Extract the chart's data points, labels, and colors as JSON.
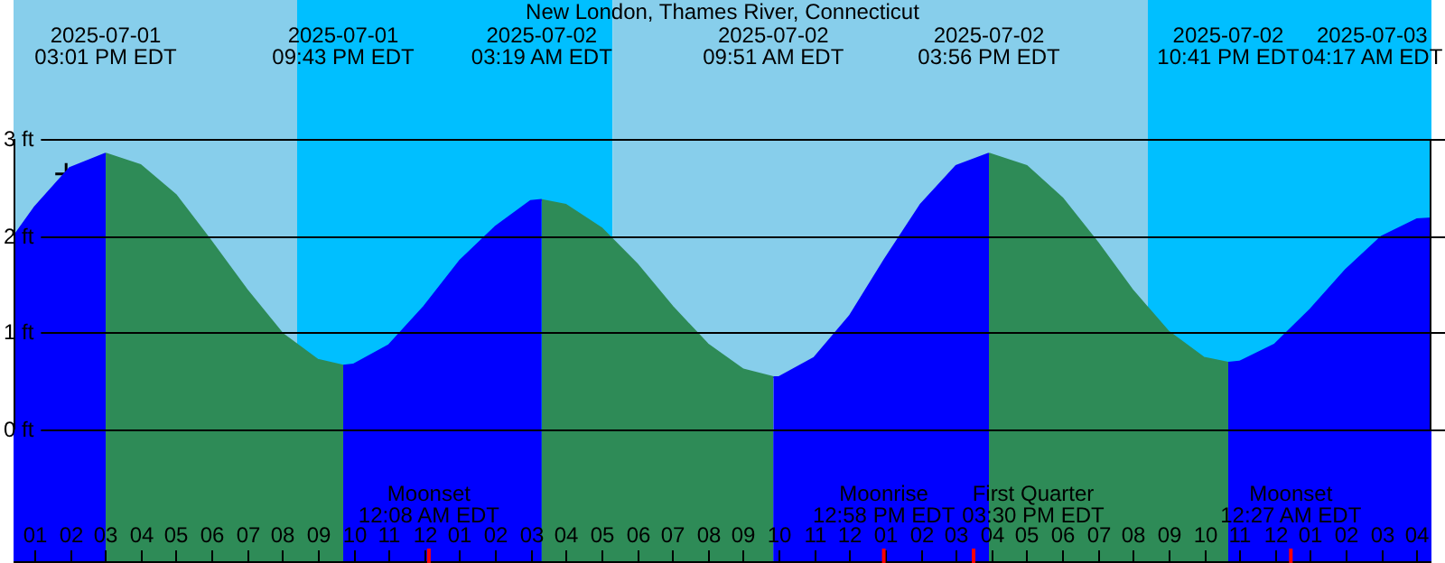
{
  "chart_data": {
    "type": "area",
    "title": "New London, Thames River, Connecticut",
    "xlim": [
      "2025-07-01T12:25",
      "2025-07-03T04:25"
    ],
    "ylim": [
      0,
      3
    ],
    "xticks": [
      {
        "value": "2025-07-01T13:00",
        "label": "01"
      },
      {
        "value": "2025-07-01T14:00",
        "label": "02"
      },
      {
        "value": "2025-07-01T15:00",
        "label": "03"
      },
      {
        "value": "2025-07-01T16:00",
        "label": "04"
      },
      {
        "value": "2025-07-01T17:00",
        "label": "05"
      },
      {
        "value": "2025-07-01T18:00",
        "label": "06"
      },
      {
        "value": "2025-07-01T19:00",
        "label": "07"
      },
      {
        "value": "2025-07-01T20:00",
        "label": "08"
      },
      {
        "value": "2025-07-01T21:00",
        "label": "09"
      },
      {
        "value": "2025-07-01T22:00",
        "label": "10"
      },
      {
        "value": "2025-07-01T23:00",
        "label": "11"
      },
      {
        "value": "2025-07-02T00:00",
        "label": "12"
      },
      {
        "value": "2025-07-02T01:00",
        "label": "01"
      },
      {
        "value": "2025-07-02T02:00",
        "label": "02"
      },
      {
        "value": "2025-07-02T03:00",
        "label": "03"
      },
      {
        "value": "2025-07-02T04:00",
        "label": "04"
      },
      {
        "value": "2025-07-02T05:00",
        "label": "05"
      },
      {
        "value": "2025-07-02T06:00",
        "label": "06"
      },
      {
        "value": "2025-07-02T07:00",
        "label": "07"
      },
      {
        "value": "2025-07-02T08:00",
        "label": "08"
      },
      {
        "value": "2025-07-02T09:00",
        "label": "09"
      },
      {
        "value": "2025-07-02T10:00",
        "label": "10"
      },
      {
        "value": "2025-07-02T11:00",
        "label": "11"
      },
      {
        "value": "2025-07-02T12:00",
        "label": "12"
      },
      {
        "value": "2025-07-02T13:00",
        "label": "01"
      },
      {
        "value": "2025-07-02T14:00",
        "label": "02"
      },
      {
        "value": "2025-07-02T15:00",
        "label": "03"
      },
      {
        "value": "2025-07-02T16:00",
        "label": "04"
      },
      {
        "value": "2025-07-02T17:00",
        "label": "05"
      },
      {
        "value": "2025-07-02T18:00",
        "label": "06"
      },
      {
        "value": "2025-07-02T19:00",
        "label": "07"
      },
      {
        "value": "2025-07-02T20:00",
        "label": "08"
      },
      {
        "value": "2025-07-02T21:00",
        "label": "09"
      },
      {
        "value": "2025-07-02T22:00",
        "label": "10"
      },
      {
        "value": "2025-07-02T23:00",
        "label": "11"
      },
      {
        "value": "2025-07-03T00:00",
        "label": "12"
      },
      {
        "value": "2025-07-03T01:00",
        "label": "01"
      },
      {
        "value": "2025-07-03T02:00",
        "label": "02"
      },
      {
        "value": "2025-07-03T03:00",
        "label": "03"
      },
      {
        "value": "2025-07-03T04:00",
        "label": "04"
      }
    ],
    "yticks": [
      {
        "value": 0,
        "label": "0 ft"
      },
      {
        "value": 1,
        "label": "1 ft"
      },
      {
        "value": 2,
        "label": "2 ft"
      },
      {
        "value": 3,
        "label": "3 ft"
      }
    ],
    "grid": "y",
    "legend": false,
    "marker": "none",
    "series": [
      {
        "color": "#0000ff",
        "x": [
          "2025-07-01T12:25",
          "2025-07-01T13:00",
          "2025-07-01T14:00",
          "2025-07-01T15:01"
        ],
        "values": [
          1.99,
          2.29,
          2.7,
          2.85
        ]
      },
      {
        "color": "#2e8b57",
        "x": [
          "2025-07-01T15:01",
          "2025-07-01T16:00",
          "2025-07-01T17:00",
          "2025-07-01T18:00",
          "2025-07-01T19:00",
          "2025-07-01T20:00",
          "2025-07-01T21:00",
          "2025-07-01T21:43"
        ],
        "values": [
          2.85,
          2.73,
          2.42,
          1.94,
          1.44,
          0.99,
          0.72,
          0.66
        ]
      },
      {
        "color": "#0000ff",
        "x": [
          "2025-07-01T21:43",
          "2025-07-01T22:00",
          "2025-07-01T23:00",
          "2025-07-02T00:00",
          "2025-07-02T01:00",
          "2025-07-02T02:00",
          "2025-07-02T03:00",
          "2025-07-02T03:19"
        ],
        "values": [
          0.66,
          0.67,
          0.87,
          1.27,
          1.74,
          2.09,
          2.36,
          2.37
        ]
      },
      {
        "color": "#2e8b57",
        "x": [
          "2025-07-02T03:19",
          "2025-07-02T04:00",
          "2025-07-02T05:00",
          "2025-07-02T06:00",
          "2025-07-02T07:00",
          "2025-07-02T08:00",
          "2025-07-02T09:00",
          "2025-07-02T09:51"
        ],
        "values": [
          2.37,
          2.32,
          2.08,
          1.71,
          1.27,
          0.88,
          0.62,
          0.54
        ]
      },
      {
        "color": "#0000ff",
        "x": [
          "2025-07-02T09:51",
          "2025-07-02T10:00",
          "2025-07-02T11:00",
          "2025-07-02T12:00",
          "2025-07-02T13:00",
          "2025-07-02T14:00",
          "2025-07-02T15:00",
          "2025-07-02T15:56"
        ],
        "values": [
          0.54,
          0.54,
          0.74,
          1.17,
          1.76,
          2.32,
          2.72,
          2.85
        ]
      },
      {
        "color": "#2e8b57",
        "x": [
          "2025-07-02T15:56",
          "2025-07-02T17:00",
          "2025-07-02T18:00",
          "2025-07-02T19:00",
          "2025-07-02T20:00",
          "2025-07-02T21:00",
          "2025-07-02T22:00",
          "2025-07-02T22:41"
        ],
        "values": [
          2.85,
          2.72,
          2.39,
          1.93,
          1.43,
          1.01,
          0.74,
          0.69
        ]
      },
      {
        "color": "#0000ff",
        "x": [
          "2025-07-02T22:41",
          "2025-07-02T23:00",
          "2025-07-03T00:00",
          "2025-07-03T01:00",
          "2025-07-03T02:00",
          "2025-07-03T03:00",
          "2025-07-03T04:00",
          "2025-07-03T04:25"
        ],
        "values": [
          0.69,
          0.7,
          0.88,
          1.24,
          1.65,
          1.99,
          2.17,
          2.18
        ]
      },
      {
        "type": "scatter",
        "marker": "cross",
        "color": "#000000",
        "x": [
          "2025-07-01T13:54"
        ],
        "values": [
          2.64
        ]
      }
    ],
    "bands": [
      {
        "axis": "x",
        "from": "2025-07-01T12:25",
        "to": "2025-07-01T20:25",
        "color": "#87ceeb"
      },
      {
        "axis": "x",
        "from": "2025-07-01T20:25",
        "to": "2025-07-02T05:19",
        "color": "#00bfff"
      },
      {
        "axis": "x",
        "from": "2025-07-02T05:19",
        "to": "2025-07-02T20:25",
        "color": "#87ceeb"
      },
      {
        "axis": "x",
        "from": "2025-07-02T20:25",
        "to": "2025-07-03T04:25",
        "color": "#00bfff"
      }
    ],
    "ref_lines": [
      {
        "axis": "x",
        "value": "2025-07-02T00:08",
        "label": "Moonset 12:08 AM EDT",
        "color": "#ff0000"
      },
      {
        "axis": "x",
        "value": "2025-07-02T12:58",
        "label": "Moonrise 12:58 PM EDT",
        "color": "#ff0000"
      },
      {
        "axis": "x",
        "value": "2025-07-02T15:30",
        "label": "First Quarter 03:30 PM EDT",
        "color": "#ff0000"
      },
      {
        "axis": "x",
        "value": "2025-07-03T00:27",
        "label": "Moonset 12:27 AM EDT",
        "color": "#ff0000"
      }
    ],
    "annotations": [
      "2025-07-01 03:01 PM EDT",
      "2025-07-01 09:43 PM EDT",
      "2025-07-02 03:19 AM EDT",
      "2025-07-02 09:51 AM EDT",
      "2025-07-02 03:56 PM EDT",
      "2025-07-02 10:41 PM EDT",
      "2025-07-03 04:17 AM EDT"
    ]
  }
}
